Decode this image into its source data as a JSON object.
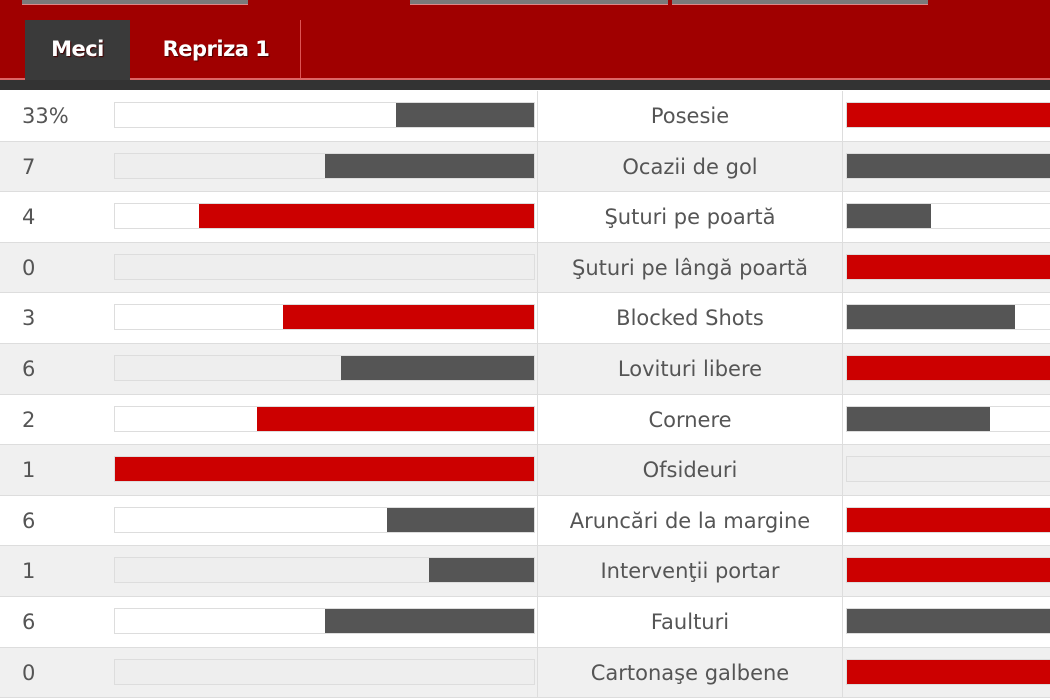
{
  "tabs": [
    {
      "label": "Meci",
      "active": true
    },
    {
      "label": "Repriza 1",
      "active": false
    }
  ],
  "colors": {
    "header": "#a00000",
    "winner": "#cc0000",
    "other": "#555555",
    "active_tab": "#3a3a3a"
  },
  "stats": [
    {
      "home": "33%",
      "label": "Posesie",
      "home_fill": 0.33,
      "home_color": "other",
      "away_fill": 0.67,
      "away_color": "winner"
    },
    {
      "home": "7",
      "label": "Ocazii de gol",
      "home_fill": 0.5,
      "home_color": "other",
      "away_fill": 0.5,
      "away_color": "other"
    },
    {
      "home": "4",
      "label": "Şuturi pe poartă",
      "home_fill": 0.8,
      "home_color": "winner",
      "away_fill": 0.2,
      "away_color": "other"
    },
    {
      "home": "0",
      "label": "Şuturi pe lângă poartă",
      "home_fill": 0,
      "home_color": "other",
      "away_fill": 1.0,
      "away_color": "winner"
    },
    {
      "home": "3",
      "label": "Blocked Shots",
      "home_fill": 0.6,
      "home_color": "winner",
      "away_fill": 0.4,
      "away_color": "other"
    },
    {
      "home": "6",
      "label": "Lovituri libere",
      "home_fill": 0.46,
      "home_color": "other",
      "away_fill": 0.54,
      "away_color": "winner"
    },
    {
      "home": "2",
      "label": "Cornere",
      "home_fill": 0.66,
      "home_color": "winner",
      "away_fill": 0.34,
      "away_color": "other"
    },
    {
      "home": "1",
      "label": "Ofsideuri",
      "home_fill": 1.0,
      "home_color": "winner",
      "away_fill": 0,
      "away_color": "other"
    },
    {
      "home": "6",
      "label": "Aruncări de la margine",
      "home_fill": 0.35,
      "home_color": "other",
      "away_fill": 0.65,
      "away_color": "winner"
    },
    {
      "home": "1",
      "label": "Intervenţii portar",
      "home_fill": 0.25,
      "home_color": "other",
      "away_fill": 0.75,
      "away_color": "winner"
    },
    {
      "home": "6",
      "label": "Faulturi",
      "home_fill": 0.5,
      "home_color": "other",
      "away_fill": 0.5,
      "away_color": "other"
    },
    {
      "home": "0",
      "label": "Cartonaşe galbene",
      "home_fill": 0,
      "home_color": "other",
      "away_fill": 1.0,
      "away_color": "winner"
    }
  ]
}
